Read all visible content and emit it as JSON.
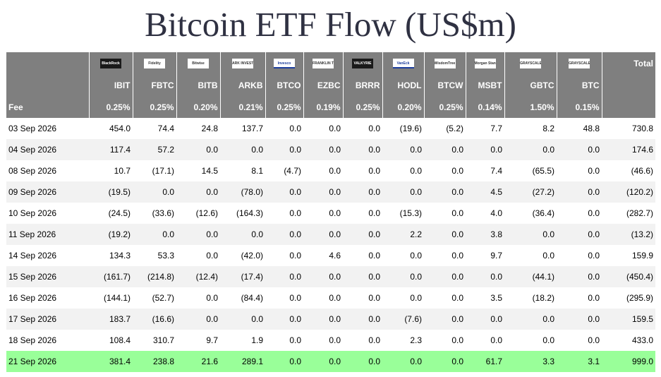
{
  "title": "Bitcoin ETF Flow (US$m)",
  "logos": [
    "BlackRock",
    "Fidelity",
    "Bitwise",
    "ARK INVEST",
    "Invesco",
    "FRANKLIN TEMPLETON",
    "VALKYRIE",
    "VanEck",
    "WisdomTree",
    "Morgan Stanley",
    "GRAYSCALE",
    "GRAYSCALE"
  ],
  "total_label": "Total",
  "tickers": [
    "IBIT",
    "FBTC",
    "BITB",
    "ARKB",
    "BTCO",
    "EZBC",
    "BRRR",
    "HODL",
    "BTCW",
    "MSBT",
    "GBTC",
    "BTC"
  ],
  "fee_label": "Fee",
  "fees": [
    "0.25%",
    "0.25%",
    "0.20%",
    "0.21%",
    "0.25%",
    "0.19%",
    "0.25%",
    "0.20%",
    "0.25%",
    "0.14%",
    "1.50%",
    "0.15%"
  ],
  "rows": [
    {
      "date": "03 Sep 2026",
      "values": [
        "454.0",
        "74.4",
        "24.8",
        "137.7",
        "0.0",
        "0.0",
        "0.0",
        "(19.6)",
        "(5.2)",
        "7.7",
        "8.2",
        "48.8"
      ],
      "total": "730.8"
    },
    {
      "date": "04 Sep 2026",
      "values": [
        "117.4",
        "57.2",
        "0.0",
        "0.0",
        "0.0",
        "0.0",
        "0.0",
        "0.0",
        "0.0",
        "0.0",
        "0.0",
        "0.0"
      ],
      "total": "174.6"
    },
    {
      "date": "08 Sep 2026",
      "values": [
        "10.7",
        "(17.1)",
        "14.5",
        "8.1",
        "(4.7)",
        "0.0",
        "0.0",
        "0.0",
        "0.0",
        "7.4",
        "(65.5)",
        "0.0"
      ],
      "total": "(46.6)"
    },
    {
      "date": "09 Sep 2026",
      "values": [
        "(19.5)",
        "0.0",
        "0.0",
        "(78.0)",
        "0.0",
        "0.0",
        "0.0",
        "0.0",
        "0.0",
        "4.5",
        "(27.2)",
        "0.0"
      ],
      "total": "(120.2)"
    },
    {
      "date": "10 Sep 2026",
      "values": [
        "(24.5)",
        "(33.6)",
        "(12.6)",
        "(164.3)",
        "0.0",
        "0.0",
        "0.0",
        "(15.3)",
        "0.0",
        "4.0",
        "(36.4)",
        "0.0"
      ],
      "total": "(282.7)"
    },
    {
      "date": "11 Sep 2026",
      "values": [
        "(19.2)",
        "0.0",
        "0.0",
        "0.0",
        "0.0",
        "0.0",
        "0.0",
        "2.2",
        "0.0",
        "3.8",
        "0.0",
        "0.0"
      ],
      "total": "(13.2)"
    },
    {
      "date": "14 Sep 2026",
      "values": [
        "134.3",
        "53.3",
        "0.0",
        "(42.0)",
        "0.0",
        "4.6",
        "0.0",
        "0.0",
        "0.0",
        "9.7",
        "0.0",
        "0.0"
      ],
      "total": "159.9"
    },
    {
      "date": "15 Sep 2026",
      "values": [
        "(161.7)",
        "(214.8)",
        "(12.4)",
        "(17.4)",
        "0.0",
        "0.0",
        "0.0",
        "0.0",
        "0.0",
        "0.0",
        "(44.1)",
        "0.0"
      ],
      "total": "(450.4)"
    },
    {
      "date": "16 Sep 2026",
      "values": [
        "(144.1)",
        "(52.7)",
        "0.0",
        "(84.4)",
        "0.0",
        "0.0",
        "0.0",
        "0.0",
        "0.0",
        "3.5",
        "(18.2)",
        "0.0"
      ],
      "total": "(295.9)"
    },
    {
      "date": "17 Sep 2026",
      "values": [
        "183.7",
        "(16.6)",
        "0.0",
        "0.0",
        "0.0",
        "0.0",
        "0.0",
        "(7.6)",
        "0.0",
        "0.0",
        "0.0",
        "0.0"
      ],
      "total": "159.5"
    },
    {
      "date": "18 Sep 2026",
      "values": [
        "108.4",
        "310.7",
        "9.7",
        "1.9",
        "0.0",
        "0.0",
        "0.0",
        "2.3",
        "0.0",
        "0.0",
        "0.0",
        "0.0"
      ],
      "total": "433.0"
    },
    {
      "date": "21 Sep 2026",
      "values": [
        "381.4",
        "238.8",
        "21.6",
        "289.1",
        "0.0",
        "0.0",
        "0.0",
        "0.0",
        "0.0",
        "61.7",
        "3.3",
        "3.1"
      ],
      "total": "999.0",
      "highlight": true
    }
  ],
  "colors": {
    "header_bg": "#7f7f7f",
    "negative": "#e00000",
    "zero": "#c0c0c0",
    "highlight": "#99ff99",
    "row_alt": "#f2f2f2"
  }
}
